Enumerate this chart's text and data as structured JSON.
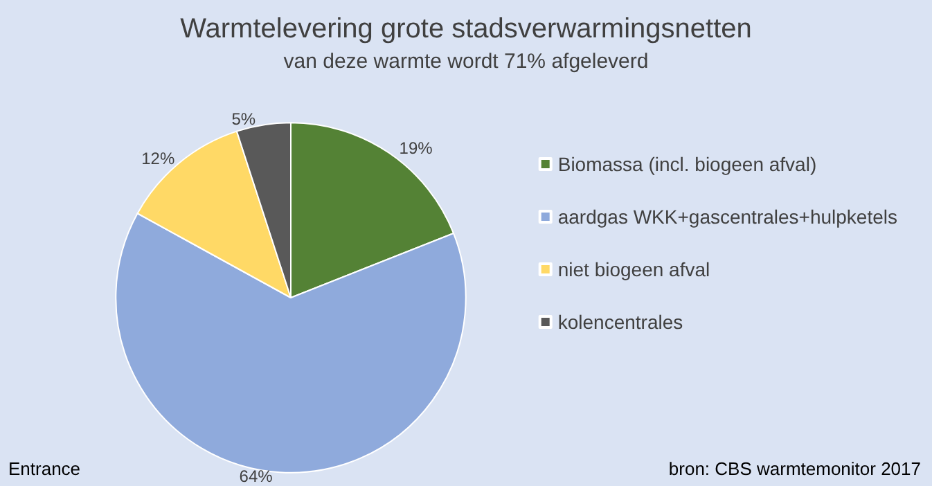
{
  "chart_data": {
    "type": "pie",
    "title": "Warmtelevering grote stadsverwarmingsnetten",
    "subtitle": "van deze warmte wordt 71% afgeleverd",
    "categories": [
      "Biomassa (incl. biogeen afval)",
      "aardgas WKK+gascentrales+hulpketels",
      "niet biogeen afval",
      "kolencentrales"
    ],
    "values": [
      19,
      64,
      12,
      5
    ],
    "colors": [
      "#548235",
      "#8faadc",
      "#ffd966",
      "#595959"
    ],
    "value_labels": [
      "19%",
      "64%",
      "12%",
      "5%"
    ],
    "legend": "right",
    "annotations": [
      "Entrance",
      "bron: CBS warmtemonitor 2017"
    ]
  }
}
